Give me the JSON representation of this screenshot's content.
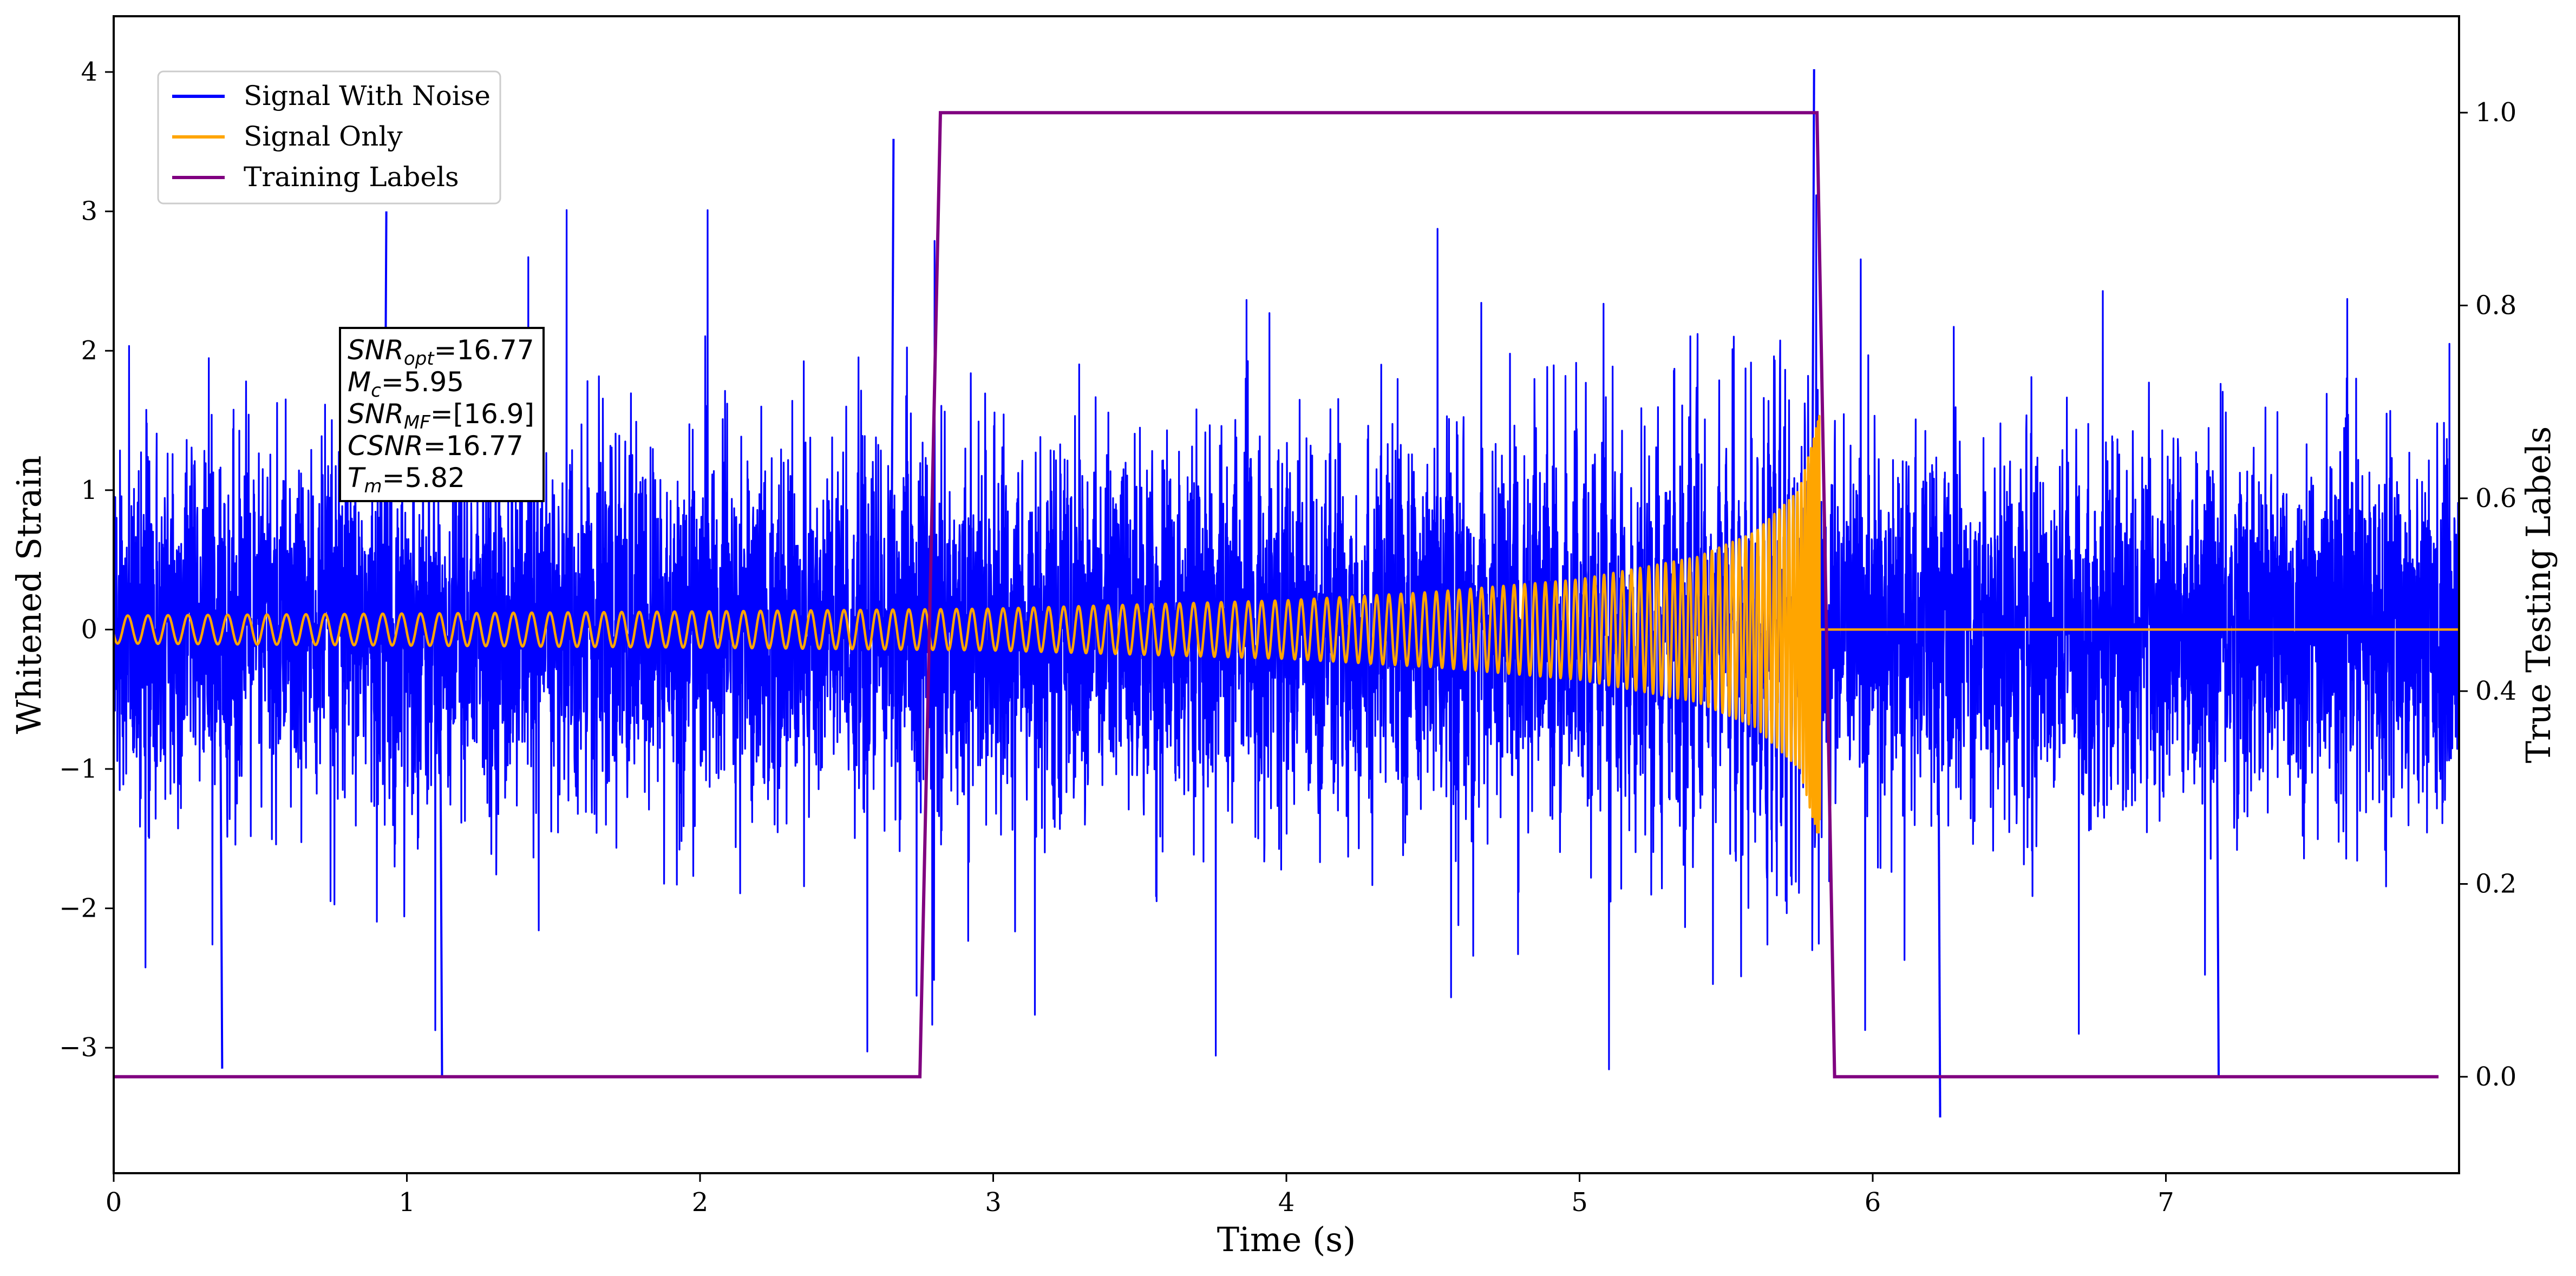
{
  "chart_data": {
    "type": "line",
    "title": "",
    "xlabel": "Time (s)",
    "ylabel_left": "Whitened Strain",
    "ylabel_right": "True Testing Labels",
    "xlim": [
      0,
      8.0
    ],
    "ylim_left": [
      -3.9,
      4.4
    ],
    "ylim_right": [
      -0.1,
      1.1
    ],
    "x_ticks": [
      "0",
      "1",
      "2",
      "3",
      "4",
      "5",
      "6",
      "7"
    ],
    "y_left_ticks": [
      "−3",
      "−2",
      "−1",
      "0",
      "1",
      "2",
      "3",
      "4"
    ],
    "y_right_ticks": [
      "0.0",
      "0.2",
      "0.4",
      "0.6",
      "0.8",
      "1.0"
    ],
    "grid": false,
    "legend_position": "upper-left",
    "series": [
      {
        "name": "Signal With Noise",
        "color": "#0000ff",
        "axis": "left",
        "description_values": {
          "x_range": [
            0,
            8.0
          ],
          "typical_amplitude": 1.3,
          "notable_peaks": [
            {
              "x": 0.37,
              "y": -3.15
            },
            {
              "x": 0.93,
              "y": 3.0
            },
            {
              "x": 1.12,
              "y": -3.2
            },
            {
              "x": 2.66,
              "y": 3.52
            },
            {
              "x": 5.8,
              "y": 4.02
            },
            {
              "x": 6.23,
              "y": -3.5
            },
            {
              "x": 7.18,
              "y": -3.2
            }
          ]
        }
      },
      {
        "name": "Signal Only",
        "color": "#ffa500",
        "axis": "left",
        "description_values": {
          "x_range": [
            0,
            8.0
          ],
          "envelope_points": [
            {
              "x": 0.0,
              "amp": 0.1
            },
            {
              "x": 2.0,
              "amp": 0.13
            },
            {
              "x": 3.0,
              "amp": 0.15
            },
            {
              "x": 4.0,
              "amp": 0.21
            },
            {
              "x": 4.5,
              "amp": 0.27
            },
            {
              "x": 5.0,
              "amp": 0.36
            },
            {
              "x": 5.4,
              "amp": 0.52
            },
            {
              "x": 5.6,
              "amp": 0.7
            },
            {
              "x": 5.75,
              "amp": 1.0
            },
            {
              "x": 5.82,
              "amp": 1.55
            }
          ],
          "merger_time": 5.82,
          "post_merger_value": 0
        }
      },
      {
        "name": "Training Labels",
        "color": "#800080",
        "axis": "right",
        "x": [
          0.0,
          2.75,
          2.82,
          5.81,
          5.87,
          7.93
        ],
        "y": [
          0.0,
          0.0,
          1.0,
          1.0,
          0.0,
          0.0
        ]
      }
    ],
    "annotation": {
      "lines": [
        {
          "base": "SNR",
          "sub": "opt",
          "text": "=16.77"
        },
        {
          "base": "M",
          "sub": "c",
          "text": "=5.95"
        },
        {
          "base": "SNR",
          "sub": "MF",
          "text": "=[16.9]"
        },
        {
          "base": "CSNR",
          "sub": "",
          "text": "=16.77"
        },
        {
          "base": "T",
          "sub": "m",
          "text": "=5.82"
        }
      ]
    }
  }
}
